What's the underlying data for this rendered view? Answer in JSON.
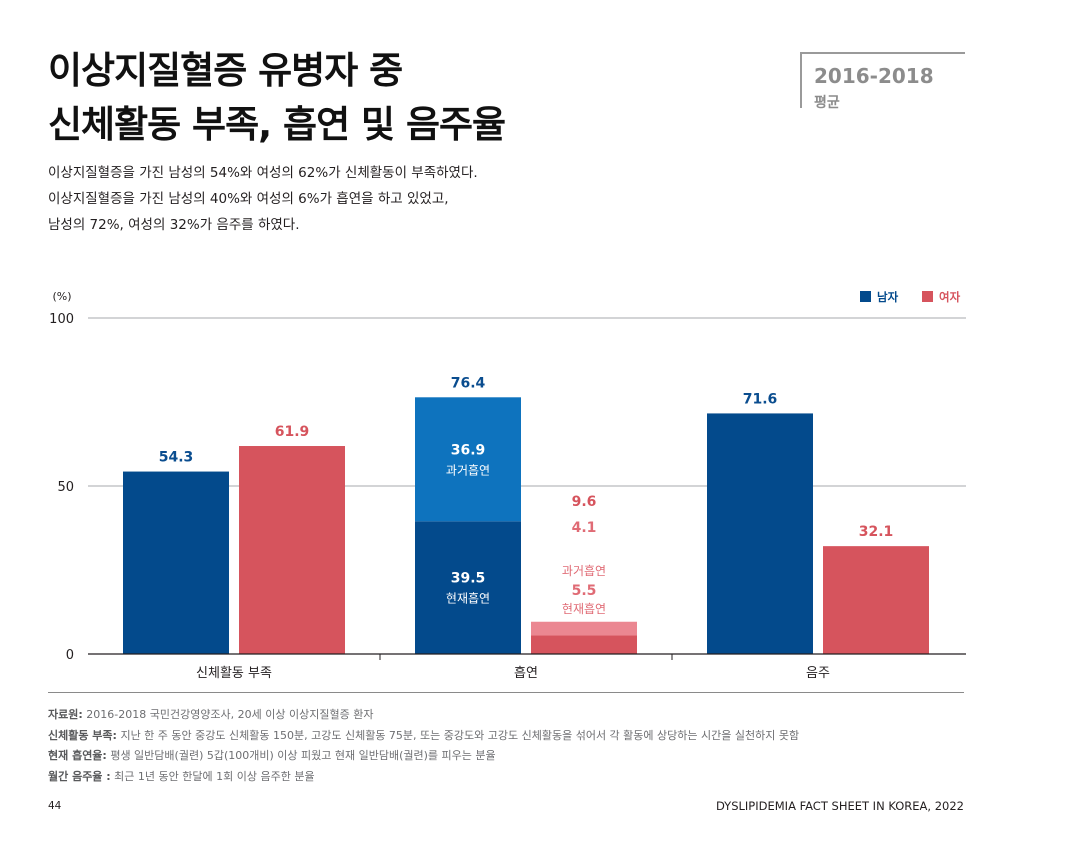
{
  "title": {
    "line1": "이상지질혈증 유병자 중",
    "line2": "신체활동 부족, 흡연 및 음주율"
  },
  "period": {
    "years": "2016-2018",
    "label": "평균"
  },
  "summary": [
    "이상지질혈증을 가진 남성의 54%와 여성의 62%가 신체활동이 부족하였다.",
    "이상지질혈증을 가진 남성의 40%와 여성의 6%가 흡연을 하고 있었고,",
    "남성의 72%, 여성의 32%가 음주를 하였다."
  ],
  "chart_data": {
    "type": "bar",
    "ylabel": "(%)",
    "ylim": [
      0,
      100
    ],
    "yticks": [
      0,
      50,
      100
    ],
    "categories": [
      "신체활동 부족",
      "흡연",
      "음주"
    ],
    "legend": {
      "position": "top-right",
      "items": [
        {
          "name": "남자",
          "color": "#034a8c"
        },
        {
          "name": "여자",
          "color": "#d6545d"
        }
      ]
    },
    "series": [
      {
        "name": "남자",
        "color": "#034a8c",
        "values": [
          54.3,
          76.4,
          71.6
        ]
      },
      {
        "name": "여자",
        "color": "#d6545d",
        "values": [
          61.9,
          9.6,
          32.1
        ]
      }
    ],
    "smoking_breakdown": {
      "남자": [
        {
          "label": "현재흡연",
          "value": 39.5,
          "color": "#034a8c"
        },
        {
          "label": "과거흡연",
          "value": 36.9,
          "color": "#0e73be"
        }
      ],
      "여자": [
        {
          "label": "현재흡연",
          "value": 5.5,
          "color": "#d6545d"
        },
        {
          "label": "과거흡연",
          "value": 4.1,
          "color": "#eb8791"
        }
      ]
    }
  },
  "notes": [
    {
      "label": "자료원:",
      "text": " 2016-2018 국민건강영양조사, 20세 이상 이상지질혈증 환자"
    },
    {
      "label": "신체활동 부족:",
      "text": " 지난 한 주 동안 중강도 신체활동 150분, 고강도 신체활동 75분, 또는 중강도와 고강도 신체활동을 섞어서 각 활동에 상당하는 시간을 실천하지 못함"
    },
    {
      "label": "현재 흡연율:",
      "text": " 평생 일반담배(궐련) 5갑(100개비) 이상 피웠고 현재 일반담배(궐련)를 피우는 분율"
    },
    {
      "label": "월간 음주율 :",
      "text": " 최근 1년 동안 한달에 1회 이상 음주한 분율"
    }
  ],
  "footer": {
    "page": "44",
    "publication": "DYSLIPIDEMIA FACT SHEET IN KOREA, 2022"
  }
}
